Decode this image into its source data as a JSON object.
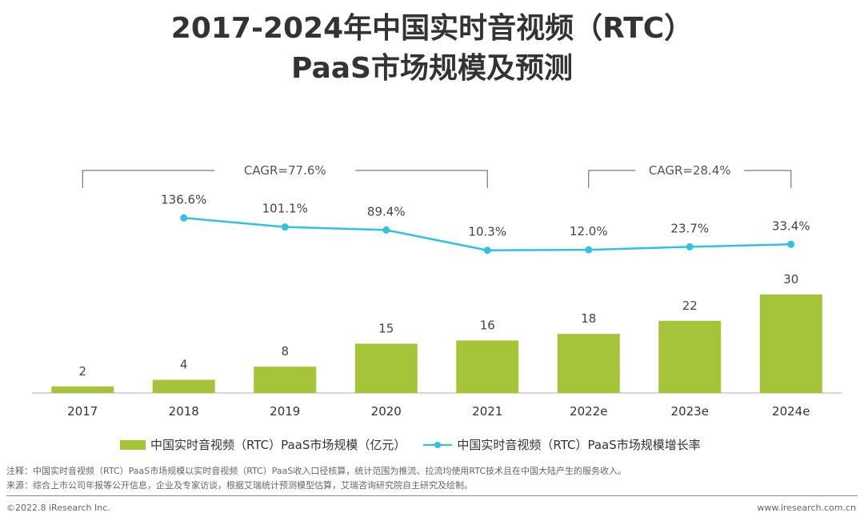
{
  "title_line1": "2017-2024年中国实时音视频（RTC）",
  "title_line2": "PaaS市场规模及预测",
  "colors": {
    "bar": "#a6c43a",
    "line": "#2fc3df",
    "axis": "#c8c8c8",
    "bracket": "#777777"
  },
  "chart_data": {
    "type": "bar+line",
    "categories": [
      "2017",
      "2018",
      "2019",
      "2020",
      "2021",
      "2022e",
      "2023e",
      "2024e"
    ],
    "bar_series": {
      "name": "中国实时音视频（RTC）PaaS市场规模（亿元）",
      "values": [
        2,
        4,
        8,
        15,
        16,
        18,
        22,
        30
      ],
      "labels": [
        "2",
        "4",
        "8",
        "15",
        "16",
        "18",
        "22",
        "30"
      ]
    },
    "line_series": {
      "name": "中国实时音视频（RTC）PaaS市场规模增长率",
      "values": [
        null,
        136.6,
        101.1,
        89.4,
        10.3,
        12.0,
        23.7,
        33.4
      ],
      "labels": [
        "",
        "136.6%",
        "101.1%",
        "89.4%",
        "10.3%",
        "12.0%",
        "23.7%",
        "33.4%"
      ]
    },
    "cagr": [
      {
        "label": "CAGR=77.6%",
        "from": "2017",
        "to": "2021"
      },
      {
        "label": "CAGR=28.4%",
        "from": "2022e",
        "to": "2024e"
      }
    ]
  },
  "notes": {
    "note1": "注释：中国实时音视频（RTC）PaaS市场规模以实时音视频（RTC）PaaS收入口径核算，统计范围为推流、拉流均使用RTC技术且在中国大陆产生的服务收入。",
    "note2": "来源：综合上市公司年报等公开信息，企业及专家访谈，根据艾瑞统计预测模型估算，艾瑞咨询研究院自主研究及绘制。"
  },
  "footer": {
    "left": "©2022.8 iResearch Inc.",
    "right": "www.iresearch.com.cn"
  }
}
